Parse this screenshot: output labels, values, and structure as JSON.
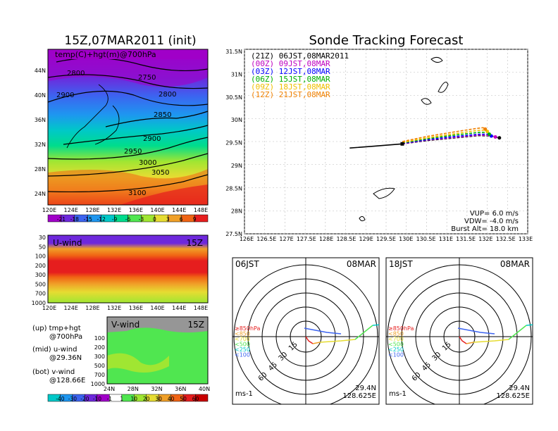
{
  "chart_data": [
    {
      "type": "heatmap",
      "title": "15Z,07MAR2011 (init)",
      "inner_label": "temp(C)+hgt(m)@700hPa",
      "x_ticks": [
        "120E",
        "124E",
        "128E",
        "132E",
        "136E",
        "140E",
        "144E",
        "148E"
      ],
      "y_ticks": [
        "24N",
        "28N",
        "32N",
        "36N",
        "40N",
        "44N"
      ],
      "contour_labels": [
        "2750",
        "2800",
        "2800",
        "2850",
        "2900",
        "2900",
        "2950",
        "3000",
        "3050",
        "3100"
      ],
      "colorbar": [
        "-21",
        "-18",
        "-15",
        "-12",
        "-9",
        "-6",
        "-3",
        "0",
        "3",
        "6",
        "9"
      ],
      "colors": [
        "#a000c8",
        "#6e28dc",
        "#3c64f0",
        "#1e96f0",
        "#00c8c8",
        "#00dc8c",
        "#50e650",
        "#a0e632",
        "#e6dc32",
        "#f0a028",
        "#f06414",
        "#e61e1e"
      ]
    },
    {
      "type": "heatmap",
      "label": "U-wind",
      "time": "15Z",
      "y_ticks": [
        "30",
        "50",
        "100",
        "200",
        "300",
        "500",
        "700",
        "1000"
      ],
      "x_ticks": [
        "120E",
        "124E",
        "128E",
        "132E",
        "136E",
        "140E",
        "144E",
        "148E"
      ]
    },
    {
      "type": "heatmap",
      "label": "V-wind",
      "time": "15Z",
      "y_ticks": [
        "100",
        "200",
        "300",
        "500",
        "700",
        "1000"
      ],
      "x_ticks": [
        "24N",
        "28N",
        "32N",
        "36N",
        "40N"
      ],
      "colorbar": [
        "-40",
        "-30",
        "-20",
        "-10",
        "-1",
        "1",
        "10",
        "20",
        "30",
        "40",
        "50",
        "60"
      ]
    },
    {
      "type": "line",
      "title": "Sonde Tracking Forecast",
      "x_ticks": [
        "126E",
        "126.5E",
        "127E",
        "127.5E",
        "128E",
        "128.5E",
        "129E",
        "129.5E",
        "130E",
        "130.5E",
        "131E",
        "131.5E",
        "132E",
        "132.5E",
        "133E"
      ],
      "y_ticks": [
        "27.5N",
        "28N",
        "28.5N",
        "29N",
        "29.5N",
        "30N",
        "30.5N",
        "31N",
        "31.5N"
      ],
      "xlim": [
        126,
        133
      ],
      "ylim": [
        27.5,
        31.5
      ],
      "series": [
        {
          "name": "(21Z) 06JST,08MAR2011",
          "color": "#000000",
          "x": [
            129.9,
            130.5,
            131.2,
            131.8,
            132.1,
            132.3
          ],
          "y": [
            29.45,
            29.52,
            29.58,
            29.63,
            29.62,
            29.58
          ]
        },
        {
          "name": "(00Z) 09JST,08MAR",
          "color": "#c000c0",
          "x": [
            129.9,
            130.5,
            131.2,
            131.8,
            132.1,
            132.2
          ],
          "y": [
            29.45,
            29.53,
            29.59,
            29.64,
            29.63,
            29.6
          ]
        },
        {
          "name": "(03Z) 12JST,08MAR",
          "color": "#0000ff",
          "x": [
            129.9,
            130.5,
            131.2,
            131.8,
            132.05,
            132.1
          ],
          "y": [
            29.46,
            29.54,
            29.61,
            29.66,
            29.66,
            29.62
          ]
        },
        {
          "name": "(06Z) 15JST,08MAR",
          "color": "#00b000",
          "x": [
            129.9,
            130.5,
            131.2,
            131.8,
            132.0,
            132.05
          ],
          "y": [
            29.47,
            29.56,
            29.64,
            29.7,
            29.7,
            29.66
          ]
        },
        {
          "name": "(09Z) 18JST,08MAR",
          "color": "#f0c000",
          "x": [
            129.9,
            130.5,
            131.2,
            131.75,
            131.95,
            132.0
          ],
          "y": [
            29.48,
            29.58,
            29.67,
            29.74,
            29.75,
            29.72
          ]
        },
        {
          "name": "(12Z) 21JST,08MAR",
          "color": "#f08000",
          "x": [
            129.9,
            130.5,
            131.2,
            131.7,
            131.9,
            131.95
          ],
          "y": [
            29.5,
            29.61,
            29.71,
            29.78,
            29.8,
            29.77
          ]
        }
      ],
      "annotations": [
        "VUP= 6.0 m/s",
        "VDW= -4.0 m/s",
        "Burst Alt= 18.0 km"
      ]
    },
    {
      "type": "scatter",
      "label_left": "06JST",
      "label_right": "08MAR",
      "rings": [
        "15",
        "30",
        "45",
        "60"
      ],
      "legend": [
        {
          "label": "≥850hPa",
          "color": "#e61e1e"
        },
        {
          "label": "<850",
          "color": "#f0a028"
        },
        {
          "label": "<700",
          "color": "#e6dc32"
        },
        {
          "label": "<500",
          "color": "#50e650"
        },
        {
          "label": "<250",
          "color": "#00c8c8"
        },
        {
          "label": "<100",
          "color": "#3c64f0"
        }
      ],
      "unit": "ms-1",
      "lat": "29.4N",
      "lon": "128.625E"
    },
    {
      "type": "scatter",
      "label_left": "18JST",
      "label_right": "08MAR",
      "rings": [
        "15",
        "30",
        "45",
        "60"
      ],
      "legend": [
        {
          "label": "≥850hPa",
          "color": "#e61e1e"
        },
        {
          "label": "<850",
          "color": "#f0a028"
        },
        {
          "label": "<700",
          "color": "#e6dc32"
        },
        {
          "label": "<500",
          "color": "#50e650"
        },
        {
          "label": "<250",
          "color": "#00c8c8"
        },
        {
          "label": "<100",
          "color": "#3c64f0"
        }
      ],
      "unit": "ms-1",
      "lat": "29.4N",
      "lon": "128.625E"
    }
  ],
  "notes": {
    "up": "(up) tmp+hgt",
    "up2": "@700hPa",
    "mid": "(mid) u-wind",
    "mid2": "@29.36N",
    "bot": "(bot) v-wind",
    "bot2": "@128.66E"
  }
}
